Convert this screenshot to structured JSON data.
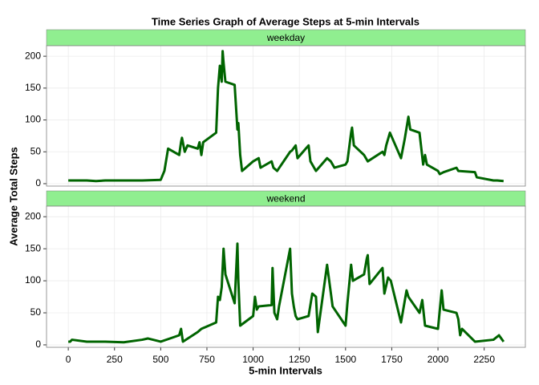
{
  "title": "Time Series Graph of Average Steps at 5-min Intervals",
  "xlabel": "5-min Intervals",
  "ylabel": "Average Total Steps",
  "chart_data": [
    {
      "type": "line",
      "panel": "weekday",
      "color": "#006400",
      "x": [
        0,
        50,
        100,
        150,
        200,
        300,
        400,
        500,
        520,
        540,
        600,
        610,
        615,
        630,
        645,
        700,
        710,
        720,
        730,
        800,
        810,
        820,
        830,
        835,
        840,
        845,
        850,
        900,
        915,
        920,
        930,
        940,
        1000,
        1030,
        1040,
        1100,
        1110,
        1130,
        1200,
        1210,
        1230,
        1240,
        1300,
        1310,
        1340,
        1400,
        1420,
        1440,
        1500,
        1510,
        1530,
        1535,
        1545,
        1600,
        1620,
        1700,
        1710,
        1720,
        1740,
        1800,
        1820,
        1840,
        1850,
        1900,
        1920,
        1930,
        1940,
        2000,
        2010,
        2030,
        2100,
        2110,
        2200,
        2210,
        2300,
        2320,
        2355
      ],
      "values": [
        5,
        5,
        5,
        4,
        5,
        5,
        5,
        6,
        20,
        55,
        45,
        65,
        72,
        50,
        60,
        55,
        65,
        45,
        65,
        80,
        150,
        185,
        160,
        208,
        190,
        175,
        160,
        155,
        85,
        95,
        45,
        20,
        35,
        40,
        25,
        35,
        25,
        20,
        50,
        52,
        60,
        40,
        60,
        35,
        20,
        40,
        35,
        25,
        30,
        35,
        80,
        88,
        60,
        45,
        35,
        50,
        45,
        60,
        80,
        40,
        70,
        105,
        85,
        80,
        30,
        45,
        30,
        20,
        15,
        18,
        25,
        20,
        18,
        10,
        5,
        5,
        4
      ],
      "xlim": [
        -117.75,
        2472.75
      ],
      "ylim": [
        -3.8,
        216.5
      ],
      "xticks": [
        0,
        250,
        500,
        750,
        1000,
        1250,
        1500,
        1750,
        2000,
        2250
      ],
      "yticks": [
        0,
        50,
        100,
        150,
        200
      ]
    },
    {
      "type": "line",
      "panel": "weekend",
      "color": "#006400",
      "x": [
        0,
        10,
        20,
        100,
        200,
        300,
        400,
        430,
        500,
        550,
        600,
        610,
        620,
        700,
        720,
        800,
        810,
        820,
        830,
        840,
        845,
        850,
        900,
        915,
        920,
        930,
        1000,
        1010,
        1020,
        1030,
        1100,
        1105,
        1115,
        1130,
        1140,
        1200,
        1210,
        1220,
        1230,
        1240,
        1300,
        1320,
        1340,
        1350,
        1400,
        1430,
        1500,
        1510,
        1530,
        1540,
        1600,
        1615,
        1620,
        1630,
        1700,
        1710,
        1730,
        1745,
        1800,
        1830,
        1840,
        1900,
        1915,
        1930,
        2000,
        2010,
        2020,
        2030,
        2100,
        2110,
        2120,
        2130,
        2200,
        2300,
        2330,
        2355
      ],
      "values": [
        5,
        5,
        8,
        5,
        5,
        4,
        8,
        10,
        5,
        10,
        15,
        25,
        5,
        20,
        25,
        35,
        75,
        70,
        90,
        150,
        130,
        110,
        65,
        158,
        100,
        30,
        45,
        75,
        55,
        60,
        62,
        120,
        50,
        40,
        60,
        150,
        80,
        60,
        45,
        40,
        45,
        80,
        75,
        20,
        125,
        60,
        30,
        65,
        125,
        100,
        110,
        135,
        140,
        95,
        120,
        80,
        105,
        100,
        35,
        85,
        75,
        50,
        70,
        30,
        25,
        55,
        85,
        55,
        50,
        40,
        15,
        25,
        5,
        8,
        15,
        5
      ],
      "xlim": [
        -117.75,
        2472.75
      ],
      "ylim": [
        -3.8,
        216.5
      ],
      "xticks": [
        0,
        250,
        500,
        750,
        1000,
        1250,
        1500,
        1750,
        2000,
        2250
      ],
      "yticks": [
        0,
        50,
        100,
        150,
        200
      ]
    }
  ]
}
